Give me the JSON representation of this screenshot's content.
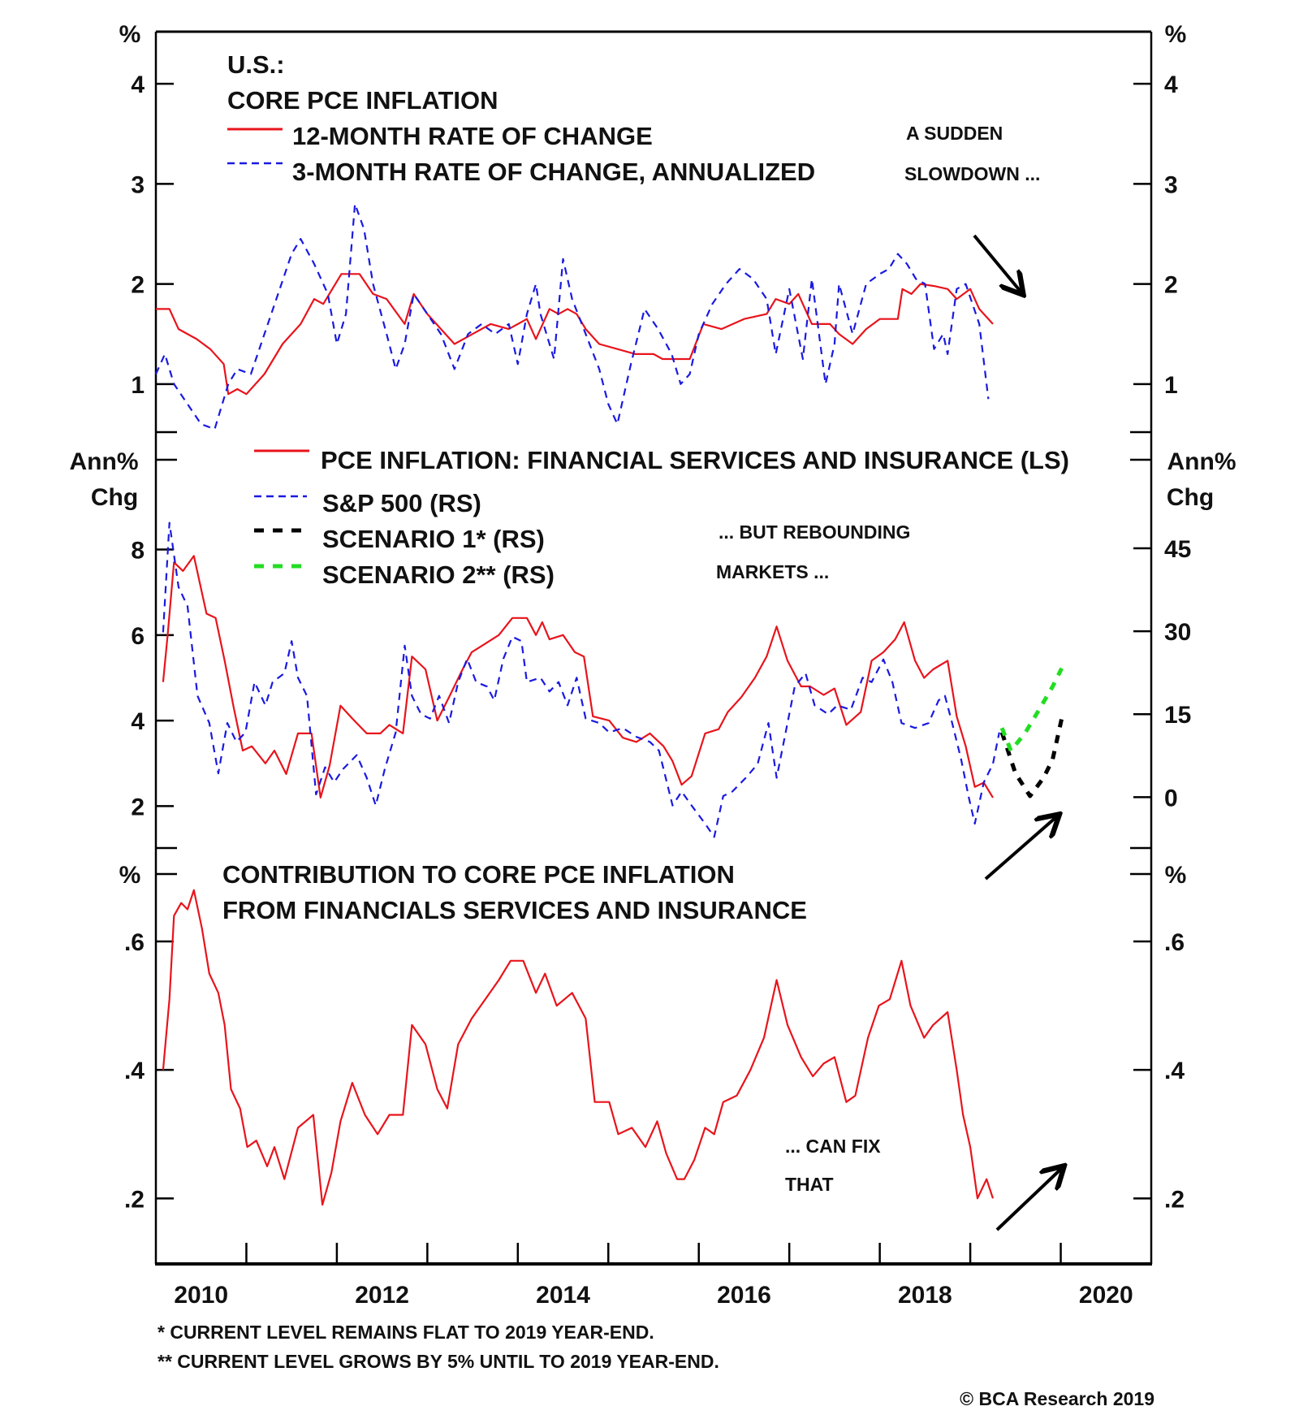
{
  "colors": {
    "red": "#e8141c",
    "blue": "#1a1ae0",
    "black": "#000000",
    "green": "#22dd22"
  },
  "panel1": {
    "unit_left": "%",
    "unit_right": "%",
    "title_lines": [
      "U.S.:",
      "CORE PCE INFLATION"
    ],
    "legend": [
      "12-MONTH RATE OF CHANGE",
      "3-MONTH RATE OF CHANGE, ANNUALIZED"
    ],
    "annotation": [
      "A SUDDEN",
      "SLOWDOWN ..."
    ]
  },
  "panel2": {
    "unit_left": [
      "Ann%",
      "Chg"
    ],
    "unit_right": [
      "Ann%",
      "Chg"
    ],
    "legend": [
      "PCE INFLATION: FINANCIAL SERVICES AND INSURANCE (LS)",
      "S&P 500 (RS)",
      "SCENARIO 1* (RS)",
      "SCENARIO 2** (RS)"
    ],
    "annotation": [
      "... BUT REBOUNDING",
      "MARKETS ..."
    ]
  },
  "panel3": {
    "unit_left": "%",
    "unit_right": "%",
    "title_lines": [
      "CONTRIBUTION TO CORE PCE INFLATION",
      "FROM FINANCIALS SERVICES AND INSURANCE"
    ],
    "annotation": [
      "... CAN FIX",
      "THAT"
    ]
  },
  "footnotes": [
    "*  CURRENT LEVEL REMAINS FLAT TO 2019 YEAR-END.",
    "** CURRENT LEVEL GROWS BY 5% UNTIL TO 2019 YEAR-END."
  ],
  "copyright": "© BCA Research 2019",
  "chart_data": [
    {
      "type": "line",
      "title": "U.S.: CORE PCE INFLATION",
      "ylabel": "%",
      "xlim": [
        2010,
        2021
      ],
      "ylim": [
        0.52,
        4.52
      ],
      "yticks": [
        1,
        2,
        3,
        4
      ],
      "ytick_labels": [
        "1",
        "2",
        "3",
        "4"
      ],
      "xtick_labels": [
        "2010",
        "2012",
        "2014",
        "2016",
        "2018",
        "2020"
      ],
      "legend": "top-left",
      "series": [
        {
          "name": "12-MONTH RATE OF CHANGE",
          "color": "#e8141c",
          "style": "solid",
          "x": [
            2010.0,
            2010.15,
            2010.25,
            2010.45,
            2010.6,
            2010.75,
            2010.8,
            2010.9,
            2011.0,
            2011.2,
            2011.4,
            2011.6,
            2011.75,
            2011.85,
            2011.95,
            2012.05,
            2012.25,
            2012.4,
            2012.55,
            2012.75,
            2012.85,
            2013.0,
            2013.2,
            2013.3,
            2013.5,
            2013.7,
            2013.9,
            2014.1,
            2014.2,
            2014.35,
            2014.45,
            2014.55,
            2014.65,
            2014.75,
            2014.9,
            2015.1,
            2015.3,
            2015.5,
            2015.6,
            2015.75,
            2015.9,
            2016.05,
            2016.25,
            2016.5,
            2016.75,
            2016.85,
            2017.0,
            2017.1,
            2017.25,
            2017.45,
            2017.55,
            2017.7,
            2017.85,
            2018.0,
            2018.2,
            2018.25,
            2018.35,
            2018.45,
            2018.6,
            2018.75,
            2018.85,
            2019.0,
            2019.1,
            2019.25
          ],
          "y": [
            1.75,
            1.75,
            1.55,
            1.45,
            1.35,
            1.2,
            0.9,
            0.95,
            0.9,
            1.1,
            1.4,
            1.6,
            1.85,
            1.8,
            1.95,
            2.1,
            2.1,
            1.9,
            1.85,
            1.6,
            1.9,
            1.7,
            1.5,
            1.4,
            1.5,
            1.6,
            1.55,
            1.65,
            1.45,
            1.75,
            1.7,
            1.75,
            1.7,
            1.55,
            1.4,
            1.35,
            1.3,
            1.3,
            1.25,
            1.25,
            1.25,
            1.6,
            1.55,
            1.65,
            1.7,
            1.85,
            1.8,
            1.9,
            1.6,
            1.6,
            1.5,
            1.4,
            1.55,
            1.65,
            1.65,
            1.95,
            1.9,
            2.0,
            1.98,
            1.95,
            1.85,
            1.95,
            1.75,
            1.6
          ]
        },
        {
          "name": "3-MONTH RATE OF CHANGE, ANNUALIZED",
          "color": "#1a1ae0",
          "style": "dashed",
          "x": [
            2010.0,
            2010.1,
            2010.2,
            2010.35,
            2010.5,
            2010.65,
            2010.8,
            2010.9,
            2011.05,
            2011.2,
            2011.35,
            2011.5,
            2011.6,
            2011.75,
            2011.9,
            2012.0,
            2012.1,
            2012.2,
            2012.3,
            2012.4,
            2012.55,
            2012.65,
            2012.75,
            2012.85,
            2013.0,
            2013.15,
            2013.3,
            2013.45,
            2013.6,
            2013.75,
            2013.9,
            2014.0,
            2014.1,
            2014.2,
            2014.25,
            2014.4,
            2014.5,
            2014.6,
            2014.75,
            2014.9,
            2015.0,
            2015.1,
            2015.25,
            2015.4,
            2015.55,
            2015.7,
            2015.8,
            2015.9,
            2016.0,
            2016.15,
            2016.3,
            2016.45,
            2016.6,
            2016.75,
            2016.85,
            2017.0,
            2017.15,
            2017.25,
            2017.4,
            2017.5,
            2017.55,
            2017.7,
            2017.85,
            2018.0,
            2018.1,
            2018.2,
            2018.3,
            2018.4,
            2018.5,
            2018.6,
            2018.7,
            2018.75,
            2018.85,
            2018.95,
            2019.1,
            2019.2
          ],
          "y": [
            1.1,
            1.3,
            1.0,
            0.8,
            0.6,
            0.55,
            1.0,
            1.15,
            1.1,
            1.5,
            1.9,
            2.3,
            2.45,
            2.2,
            1.9,
            1.4,
            1.7,
            2.8,
            2.55,
            2.0,
            1.5,
            1.15,
            1.4,
            1.9,
            1.7,
            1.5,
            1.15,
            1.5,
            1.6,
            1.5,
            1.6,
            1.2,
            1.7,
            2.0,
            1.7,
            1.25,
            2.25,
            1.85,
            1.5,
            1.15,
            0.8,
            0.6,
            1.2,
            1.75,
            1.55,
            1.3,
            1.0,
            1.1,
            1.5,
            1.8,
            2.0,
            2.15,
            2.05,
            1.85,
            1.3,
            1.95,
            1.25,
            2.05,
            1.0,
            1.4,
            2.0,
            1.5,
            2.0,
            2.1,
            2.15,
            2.3,
            2.2,
            2.05,
            2.0,
            1.35,
            1.5,
            1.3,
            1.95,
            2.0,
            1.6,
            0.85
          ]
        }
      ]
    },
    {
      "type": "line",
      "ylabel_left": "Ann% Chg",
      "ylabel_right": "Ann% Chg",
      "xlim": [
        2010,
        2021
      ],
      "ylim_left": [
        1.02,
        10.1
      ],
      "ylim_right": [
        -9.2,
        61
      ],
      "yticks_left": [
        2,
        4,
        6,
        8
      ],
      "ytick_labels_left": [
        "2",
        "4",
        "6",
        "8"
      ],
      "yticks_right": [
        0,
        15,
        30,
        45
      ],
      "ytick_labels_right": [
        "0",
        "15",
        "30",
        "45"
      ],
      "legend": "top-left",
      "series": [
        {
          "name": "PCE INFLATION: FINANCIAL SERVICES AND INSURANCE (LS)",
          "axis": "left",
          "color": "#e8141c",
          "style": "solid",
          "x": [
            2010.08,
            2010.13,
            2010.2,
            2010.3,
            2010.42,
            2010.56,
            2010.66,
            2010.76,
            2010.86,
            2010.96,
            2011.06,
            2011.21,
            2011.31,
            2011.44,
            2011.57,
            2011.72,
            2011.82,
            2011.92,
            2012.04,
            2012.17,
            2012.33,
            2012.48,
            2012.58,
            2012.73,
            2012.83,
            2012.98,
            2013.11,
            2013.24,
            2013.39,
            2013.49,
            2013.64,
            2013.79,
            2013.94,
            2014.1,
            2014.2,
            2014.27,
            2014.35,
            2014.5,
            2014.63,
            2014.73,
            2014.83,
            2015.01,
            2015.16,
            2015.31,
            2015.46,
            2015.61,
            2015.71,
            2015.81,
            2015.92,
            2016.07,
            2016.22,
            2016.32,
            2016.47,
            2016.62,
            2016.75,
            2016.86,
            2016.98,
            2017.13,
            2017.23,
            2017.38,
            2017.5,
            2017.63,
            2017.79,
            2017.91,
            2018.04,
            2018.17,
            2018.27,
            2018.39,
            2018.49,
            2018.59,
            2018.75,
            2018.85,
            2018.95,
            2019.05,
            2019.15,
            2019.25
          ],
          "y": [
            4.9,
            6.0,
            7.7,
            7.5,
            7.85,
            6.5,
            6.4,
            5.4,
            4.3,
            3.3,
            3.4,
            3.0,
            3.3,
            2.75,
            3.7,
            3.7,
            2.2,
            2.95,
            4.35,
            4.05,
            3.7,
            3.7,
            3.9,
            3.7,
            5.5,
            5.2,
            4.0,
            4.55,
            5.2,
            5.6,
            5.8,
            6.0,
            6.4,
            6.4,
            6.0,
            6.3,
            5.9,
            6.0,
            5.6,
            5.5,
            4.1,
            4.0,
            3.6,
            3.5,
            3.7,
            3.4,
            3.05,
            2.5,
            2.7,
            3.7,
            3.8,
            4.2,
            4.55,
            5.0,
            5.5,
            6.2,
            5.4,
            4.8,
            4.8,
            4.6,
            4.75,
            3.9,
            4.2,
            5.4,
            5.6,
            5.9,
            6.3,
            5.4,
            5.0,
            5.2,
            5.4,
            4.1,
            3.4,
            2.45,
            2.55,
            2.2
          ]
        },
        {
          "name": "S&P 500 (RS)",
          "axis": "right",
          "color": "#1a1ae0",
          "style": "dashed",
          "x": [
            2010.08,
            2010.15,
            2010.25,
            2010.35,
            2010.46,
            2010.59,
            2010.69,
            2010.79,
            2010.89,
            2010.99,
            2011.09,
            2011.21,
            2011.29,
            2011.42,
            2011.5,
            2011.57,
            2011.67,
            2011.77,
            2011.87,
            2011.97,
            2012.07,
            2012.22,
            2012.33,
            2012.43,
            2012.53,
            2012.65,
            2012.75,
            2012.83,
            2012.93,
            2013.03,
            2013.13,
            2013.24,
            2013.34,
            2013.44,
            2013.54,
            2013.66,
            2013.74,
            2013.84,
            2013.94,
            2014.04,
            2014.1,
            2014.25,
            2014.35,
            2014.45,
            2014.55,
            2014.65,
            2014.75,
            2014.9,
            2015.01,
            2015.16,
            2015.31,
            2015.46,
            2015.56,
            2015.71,
            2015.81,
            2015.92,
            2016.07,
            2016.17,
            2016.27,
            2016.37,
            2016.52,
            2016.65,
            2016.77,
            2016.86,
            2016.96,
            2017.06,
            2017.18,
            2017.28,
            2017.43,
            2017.53,
            2017.68,
            2017.81,
            2017.91,
            2018.04,
            2018.14,
            2018.24,
            2018.39,
            2018.54,
            2018.65,
            2018.72,
            2018.8,
            2018.9,
            2018.98,
            2019.05,
            2019.15,
            2019.25,
            2019.32
          ],
          "y": [
            29.8,
            49.6,
            38,
            34.5,
            18.3,
            13.4,
            4.3,
            13.4,
            10,
            11.7,
            20.8,
            16.6,
            20.8,
            22.4,
            28.2,
            21.6,
            18.3,
            0.5,
            5.4,
            2.7,
            5.1,
            7.6,
            3.5,
            -1.5,
            5.1,
            11.7,
            27.4,
            18.3,
            15,
            14.2,
            18.3,
            13.4,
            20.8,
            25,
            20.8,
            20,
            17.5,
            25,
            29,
            28.2,
            20.8,
            21.6,
            19.1,
            20.8,
            16.6,
            21.6,
            14.2,
            13.4,
            11.7,
            12.5,
            10.9,
            10,
            8.4,
            -1.5,
            1,
            -1.5,
            -4.8,
            -7.2,
            0.2,
            1,
            3.5,
            6,
            13.4,
            3.5,
            11.7,
            20,
            22.4,
            16.6,
            15,
            16.6,
            15.8,
            21.6,
            20.8,
            24.9,
            20.8,
            13.4,
            12.5,
            13.4,
            17.5,
            18.3,
            13.4,
            6.8,
            0.2,
            -4.8,
            2.7,
            6,
            11.7
          ]
        },
        {
          "name": "SCENARIO 1* (RS)",
          "axis": "right",
          "color": "#000000",
          "style": "dashed",
          "x": [
            2019.35,
            2019.5,
            2019.66,
            2019.81,
            2019.91,
            2020.01
          ],
          "y": [
            11.7,
            4.3,
            0.2,
            3.5,
            6.8,
            14.2
          ]
        },
        {
          "name": "SCENARIO 2** (RS)",
          "axis": "right",
          "color": "#22dd22",
          "style": "dashed",
          "x": [
            2019.35,
            2019.45,
            2019.61,
            2019.76,
            2019.91,
            2020.01
          ],
          "y": [
            12.5,
            8.4,
            11.7,
            15.8,
            20,
            23.3
          ]
        }
      ]
    },
    {
      "type": "line",
      "title": "CONTRIBUTION TO CORE PCE INFLATION FROM FINANCIALS SERVICES AND INSURANCE",
      "ylabel": "%",
      "xlim": [
        2010,
        2021
      ],
      "ylim": [
        0.098,
        0.705
      ],
      "yticks": [
        0.2,
        0.4,
        0.6
      ],
      "ytick_labels": [
        ".2",
        ".4",
        ".6"
      ],
      "xticks": [
        2011,
        2012,
        2013,
        2014,
        2015,
        2016,
        2017,
        2018,
        2019,
        2020
      ],
      "xtick_labels": [
        "2010",
        "2012",
        "2014",
        "2016",
        "2018",
        "2020"
      ],
      "series": [
        {
          "color": "#e8141c",
          "style": "solid",
          "x": [
            2010.08,
            2010.15,
            2010.2,
            2010.28,
            2010.35,
            2010.42,
            2010.51,
            2010.59,
            2010.69,
            2010.76,
            2010.83,
            2010.93,
            2011.01,
            2011.11,
            2011.23,
            2011.31,
            2011.42,
            2011.57,
            2011.74,
            2011.84,
            2011.94,
            2012.04,
            2012.17,
            2012.31,
            2012.45,
            2012.58,
            2012.73,
            2012.83,
            2012.98,
            2013.11,
            2013.22,
            2013.34,
            2013.49,
            2013.64,
            2013.79,
            2013.92,
            2014.06,
            2014.2,
            2014.3,
            2014.43,
            2014.6,
            2014.75,
            2014.85,
            2015.01,
            2015.11,
            2015.26,
            2015.41,
            2015.54,
            2015.64,
            2015.76,
            2015.84,
            2015.95,
            2016.07,
            2016.17,
            2016.27,
            2016.42,
            2016.57,
            2016.72,
            2016.86,
            2016.98,
            2017.13,
            2017.26,
            2017.38,
            2017.5,
            2017.63,
            2017.73,
            2017.87,
            2017.99,
            2018.11,
            2018.24,
            2018.34,
            2018.49,
            2018.59,
            2018.75,
            2018.85,
            2018.92,
            2019.0,
            2019.08,
            2019.18,
            2019.25
          ],
          "y": [
            0.4,
            0.51,
            0.64,
            0.66,
            0.65,
            0.68,
            0.62,
            0.55,
            0.52,
            0.47,
            0.37,
            0.34,
            0.28,
            0.29,
            0.25,
            0.28,
            0.23,
            0.31,
            0.33,
            0.19,
            0.24,
            0.32,
            0.38,
            0.33,
            0.3,
            0.33,
            0.33,
            0.47,
            0.44,
            0.37,
            0.34,
            0.44,
            0.48,
            0.51,
            0.54,
            0.57,
            0.57,
            0.52,
            0.55,
            0.5,
            0.52,
            0.48,
            0.35,
            0.35,
            0.3,
            0.31,
            0.28,
            0.32,
            0.27,
            0.23,
            0.23,
            0.26,
            0.31,
            0.3,
            0.35,
            0.36,
            0.4,
            0.45,
            0.54,
            0.47,
            0.42,
            0.39,
            0.41,
            0.42,
            0.35,
            0.36,
            0.45,
            0.5,
            0.51,
            0.57,
            0.5,
            0.45,
            0.47,
            0.49,
            0.4,
            0.33,
            0.28,
            0.2,
            0.23,
            0.2
          ]
        }
      ]
    }
  ]
}
